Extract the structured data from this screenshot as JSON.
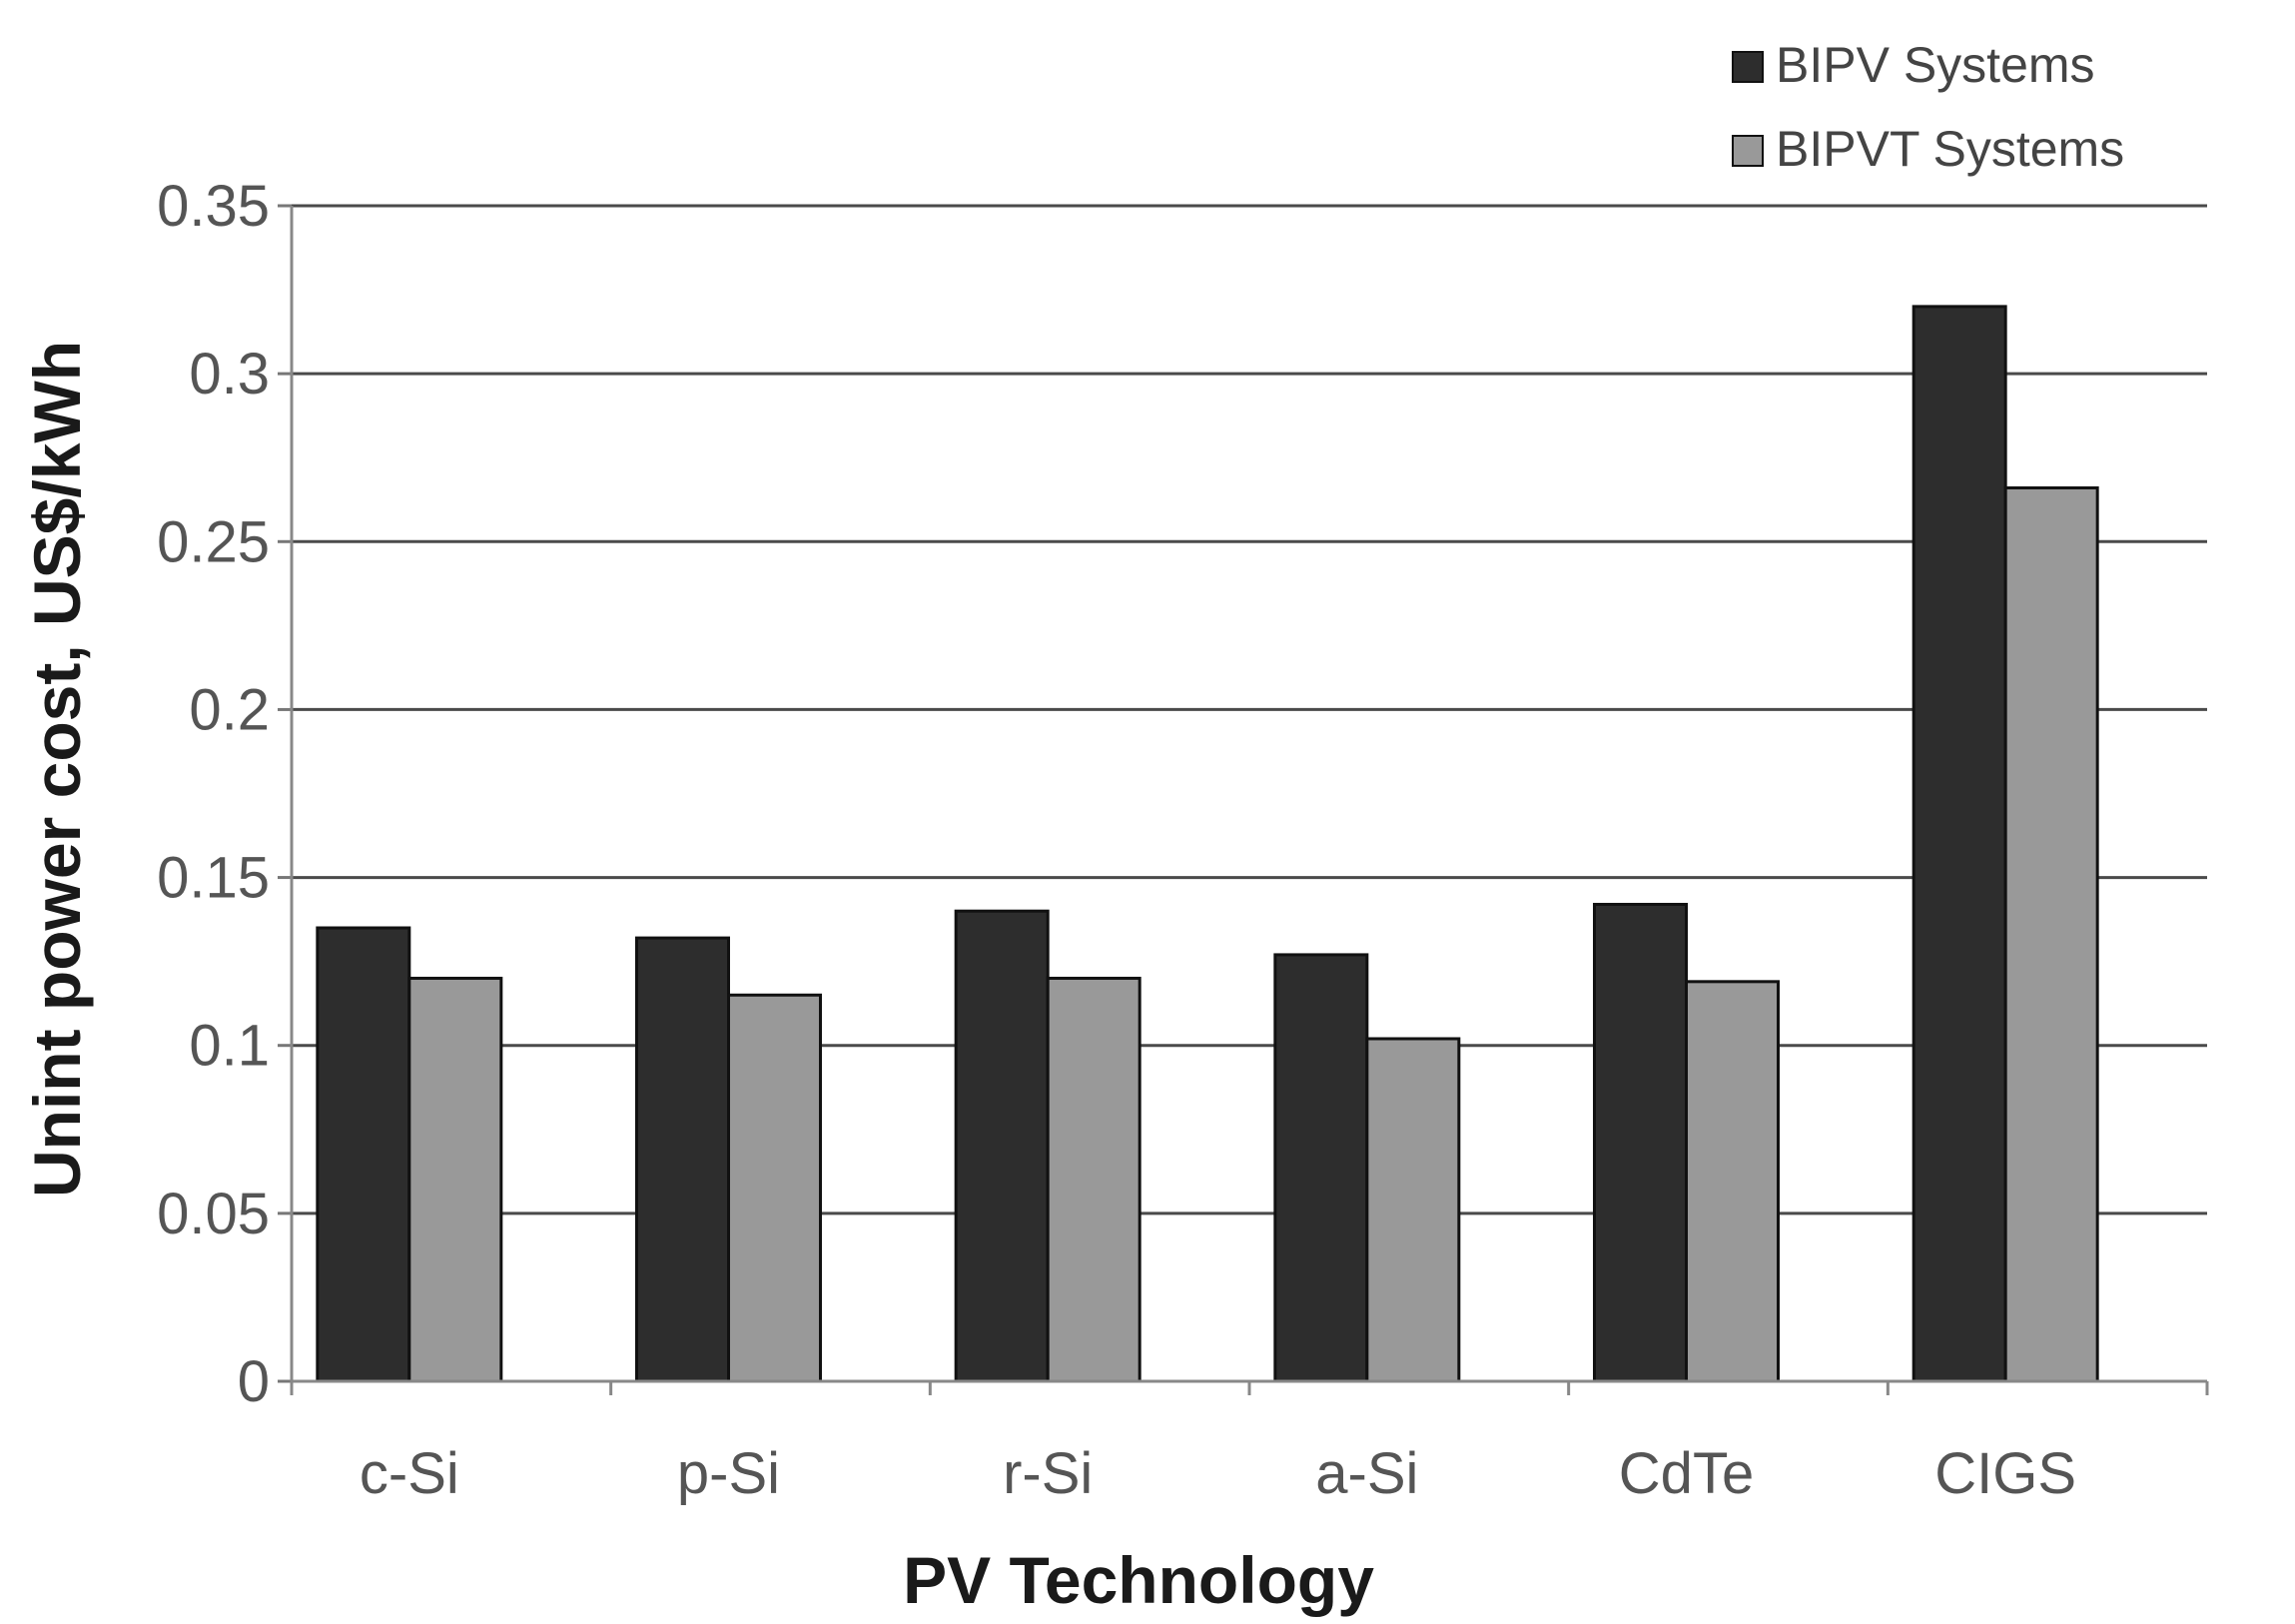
{
  "chart_data": {
    "type": "bar",
    "title": "",
    "xlabel": "PV Technology",
    "ylabel": "Unint power cost, US$/kWh",
    "categories": [
      "c-Si",
      "p-Si",
      "r-Si",
      "a-Si",
      "CdTe",
      "CIGS"
    ],
    "series": [
      {
        "name": "BIPV Systems",
        "color": "#2d2d2d",
        "values": [
          0.135,
          0.132,
          0.14,
          0.127,
          0.142,
          0.32
        ]
      },
      {
        "name": "BIPVT Systems",
        "color": "#999999",
        "values": [
          0.12,
          0.115,
          0.12,
          0.102,
          0.119,
          0.266
        ]
      }
    ],
    "ylim": [
      0,
      0.35
    ],
    "yticks": [
      "0",
      "0.05",
      "0.1",
      "0.15",
      "0.2",
      "0.25",
      "0.3",
      "0.35"
    ],
    "grid": true,
    "legend_position": "top-right"
  }
}
